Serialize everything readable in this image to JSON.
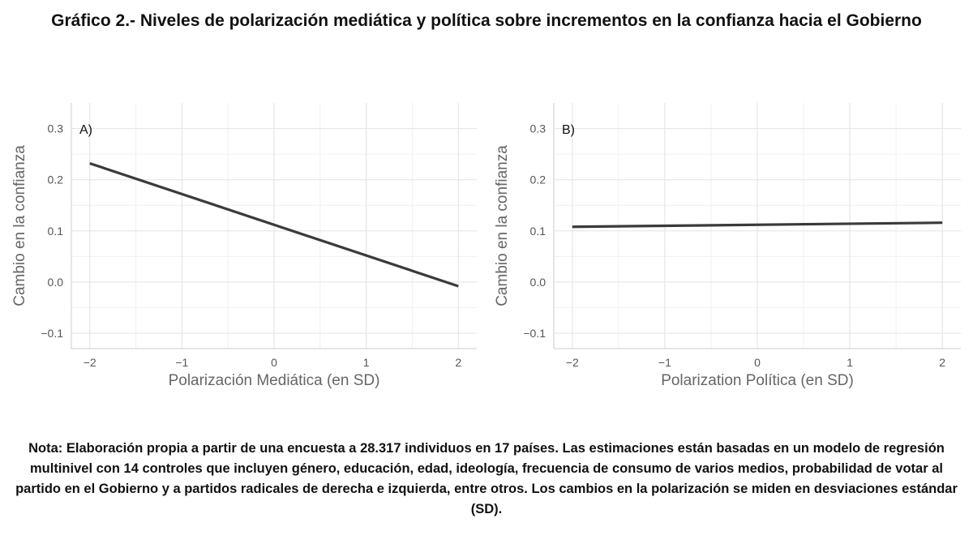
{
  "title": "Gráfico 2.- Niveles de polarización mediática y política sobre incrementos en la confianza hacia el Gobierno",
  "note": "Nota: Elaboración propia a partir de una encuesta a 28.317 individuos en 17 países. Las estimaciones están basadas en un modelo de regresión multinivel con 14 controles que incluyen género, educación, edad, ideología, frecuencia de consumo de varios medios, probabilidad de votar al partido en el Gobierno y a partidos radicales de derecha e izquierda, entre otros. Los cambios en la polarización se miden en desviaciones estándar (SD).",
  "colors": {
    "line": "#3a3a3a",
    "grid": "#e6e6e6",
    "axis_text": "#555555",
    "label_text": "#666666"
  },
  "chart_data": [
    {
      "type": "line",
      "panel_label": "A)",
      "xlabel": "Polarización Mediática (en SD)",
      "ylabel": "Cambio en la confianza",
      "xlim": [
        -2.2,
        2.2
      ],
      "ylim": [
        -0.13,
        0.35
      ],
      "x_ticks": [
        -2,
        -1,
        0,
        1,
        2
      ],
      "x_tick_labels": [
        "−2",
        "−1",
        "0",
        "1",
        "2"
      ],
      "y_ticks": [
        -0.1,
        0.0,
        0.1,
        0.2,
        0.3
      ],
      "y_tick_labels": [
        "−0.1",
        "0.0",
        "0.1",
        "0.2",
        "0.3"
      ],
      "grid": true,
      "series": [
        {
          "x": [
            -2,
            2
          ],
          "y": [
            0.232,
            -0.008
          ]
        }
      ]
    },
    {
      "type": "line",
      "panel_label": "B)",
      "xlabel": "Polarization Política (en SD)",
      "ylabel": "Cambio en la confianza",
      "xlim": [
        -2.2,
        2.2
      ],
      "ylim": [
        -0.13,
        0.35
      ],
      "x_ticks": [
        -2,
        -1,
        0,
        1,
        2
      ],
      "x_tick_labels": [
        "−2",
        "−1",
        "0",
        "1",
        "2"
      ],
      "y_ticks": [
        -0.1,
        0.0,
        0.1,
        0.2,
        0.3
      ],
      "y_tick_labels": [
        "−0.1",
        "0.0",
        "0.1",
        "0.2",
        "0.3"
      ],
      "grid": true,
      "series": [
        {
          "x": [
            -2,
            2
          ],
          "y": [
            0.108,
            0.116
          ]
        }
      ]
    }
  ]
}
